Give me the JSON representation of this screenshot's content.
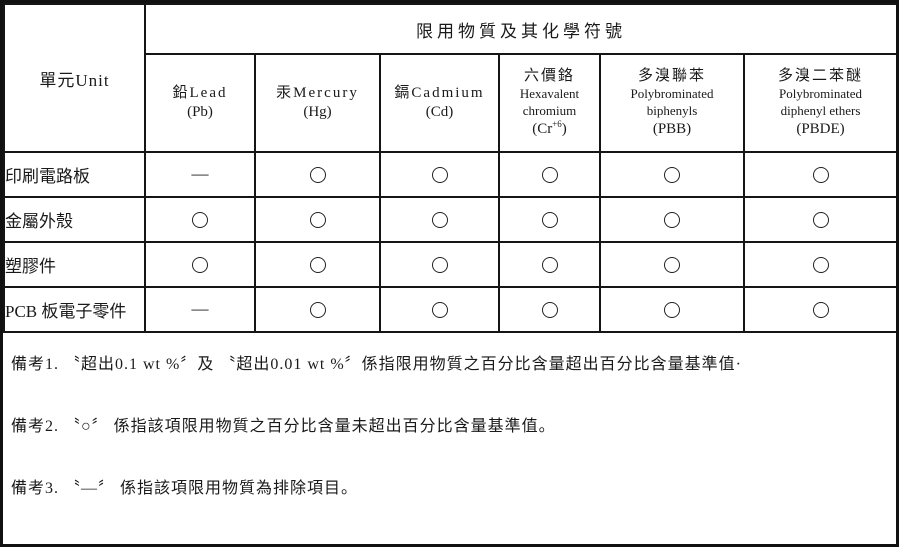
{
  "colors": {
    "line": "#151515",
    "text": "#1a1a1a",
    "background": "#ffffff"
  },
  "table": {
    "unit_header": "單元Unit",
    "group_header": "限用物質及其化學符號",
    "columns": [
      {
        "lines": [
          "鉛Lead",
          "(Pb)"
        ]
      },
      {
        "lines": [
          "汞Mercury",
          "(Hg)"
        ]
      },
      {
        "lines": [
          "鎘Cadmium",
          "(Cd)"
        ]
      },
      {
        "lines": [
          "六價鉻",
          "Hexavalent",
          "chromium",
          {
            "pre": "(Cr",
            "sup": "+6",
            "post": ")"
          }
        ]
      },
      {
        "lines": [
          "多溴聯苯",
          "Polybrominated",
          "biphenyls",
          "(PBB)"
        ]
      },
      {
        "lines": [
          "多溴二苯醚",
          "Polybrominated",
          "diphenyl ethers",
          "(PBDE)"
        ]
      }
    ],
    "rows": [
      {
        "label": "印刷電路板",
        "values": [
          "—",
          "○",
          "○",
          "○",
          "○",
          "○"
        ]
      },
      {
        "label": "金屬外殼",
        "values": [
          "○",
          "○",
          "○",
          "○",
          "○",
          "○"
        ]
      },
      {
        "label": "塑膠件",
        "values": [
          "○",
          "○",
          "○",
          "○",
          "○",
          "○"
        ]
      },
      {
        "label": "PCB 板電子零件",
        "values": [
          "—",
          "○",
          "○",
          "○",
          "○",
          "○"
        ]
      }
    ],
    "symbols": {
      "circle": "○",
      "dash": "—"
    }
  },
  "notes": [
    "備考1. 〝超出0.1 wt %〞及 〝超出0.01 wt %〞係指限用物質之百分比含量超出百分比含量基準值·",
    "備考2. 〝○〞 係指該項限用物質之百分比含量未超出百分比含量基準值。",
    "備考3. 〝—〞 係指該項限用物質為排除項目。"
  ]
}
